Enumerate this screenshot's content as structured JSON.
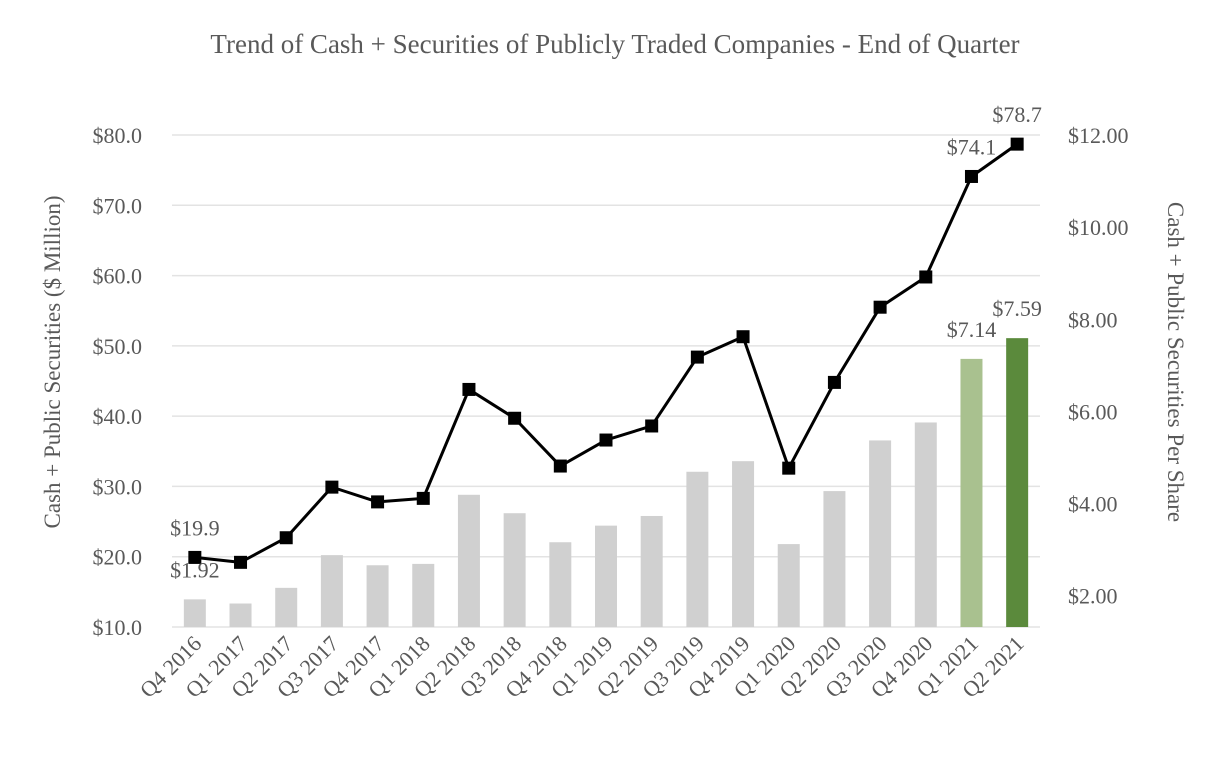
{
  "chart_data": {
    "type": "bar+line",
    "title": "Trend of Cash + Securities of Publicly Traded Companies - End of Quarter",
    "categories": [
      "Q4 2016",
      "Q1 2017",
      "Q2 2017",
      "Q3 2017",
      "Q4 2017",
      "Q1 2018",
      "Q2 2018",
      "Q3 2018",
      "Q4 2018",
      "Q1 2019",
      "Q2 2019",
      "Q3 2019",
      "Q4 2019",
      "Q1 2020",
      "Q2 2020",
      "Q3 2020",
      "Q4 2020",
      "Q1 2021",
      "Q2 2021"
    ],
    "series": [
      {
        "name": "Cash + Public Securities Per Share",
        "type": "bar",
        "axis": "right",
        "values": [
          1.92,
          1.83,
          2.17,
          2.88,
          2.66,
          2.69,
          4.19,
          3.79,
          3.16,
          3.52,
          3.73,
          4.69,
          4.92,
          3.12,
          4.27,
          5.37,
          5.76,
          7.14,
          7.59
        ],
        "colors": [
          "#d0d0d0",
          "#d0d0d0",
          "#d0d0d0",
          "#d0d0d0",
          "#d0d0d0",
          "#d0d0d0",
          "#d0d0d0",
          "#d0d0d0",
          "#d0d0d0",
          "#d0d0d0",
          "#d0d0d0",
          "#d0d0d0",
          "#d0d0d0",
          "#d0d0d0",
          "#d0d0d0",
          "#d0d0d0",
          "#d0d0d0",
          "#a9c18f",
          "#5b8a3c"
        ]
      },
      {
        "name": "Cash + Public Securities ($ Million)",
        "type": "line",
        "axis": "left",
        "values": [
          19.9,
          19.2,
          22.7,
          29.9,
          27.8,
          28.3,
          43.8,
          39.7,
          32.9,
          36.6,
          38.6,
          48.4,
          51.3,
          32.6,
          44.8,
          55.5,
          59.8,
          74.1,
          78.7
        ],
        "color": "#000000"
      }
    ],
    "data_labels": [
      {
        "series": 1,
        "index": 0,
        "text": "$19.9"
      },
      {
        "series": 0,
        "index": 0,
        "text": "$1.92"
      },
      {
        "series": 1,
        "index": 17,
        "text": "$74.1"
      },
      {
        "series": 1,
        "index": 18,
        "text": "$78.7"
      },
      {
        "series": 0,
        "index": 17,
        "text": "$7.14"
      },
      {
        "series": 0,
        "index": 18,
        "text": "$7.59"
      }
    ],
    "ylabel": "Cash + Public Securities ($ Million)",
    "ylim": [
      10,
      80
    ],
    "yticks": [
      "$10.0",
      "$20.0",
      "$30.0",
      "$40.0",
      "$50.0",
      "$60.0",
      "$70.0",
      "$80.0"
    ],
    "y2label": "Cash + Public Securities Per Share",
    "y2lim": [
      1.32,
      12
    ],
    "y2ticks": [
      {
        "value": 2,
        "label": "$2.00"
      },
      {
        "value": 4,
        "label": "$4.00"
      },
      {
        "value": 6,
        "label": "$6.00"
      },
      {
        "value": 8,
        "label": "$8.00"
      },
      {
        "value": 10,
        "label": "$10.00"
      },
      {
        "value": 12,
        "label": "$12.00"
      }
    ],
    "grid": true,
    "legend": "none"
  }
}
